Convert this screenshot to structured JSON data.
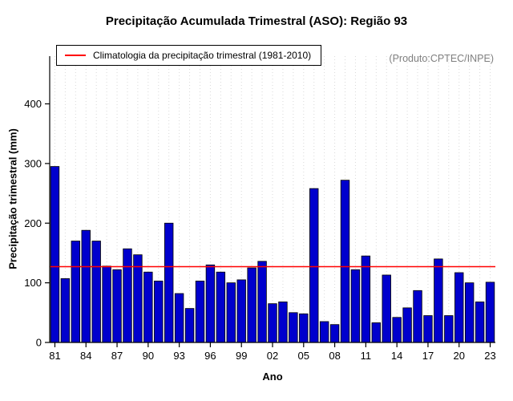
{
  "chart_data": {
    "type": "bar",
    "title": "Precipitação Acumulada Trimestral (ASO): Região 93",
    "xlabel": "Ano",
    "ylabel": "Precipitação trimestral (mm)",
    "legend_label": "Climatologia da precipitação trimestral (1981-2010)",
    "annotation": "(Produto:CPTEC/INPE)",
    "climatology_value": 127,
    "ylim": [
      0,
      480
    ],
    "yticks": [
      0,
      100,
      200,
      300,
      400
    ],
    "xtick_labels": [
      "81",
      "84",
      "87",
      "90",
      "93",
      "96",
      "99",
      "02",
      "05",
      "08",
      "11",
      "14",
      "17",
      "20",
      "23"
    ],
    "years": [
      "81",
      "82",
      "83",
      "84",
      "85",
      "86",
      "87",
      "88",
      "89",
      "90",
      "91",
      "92",
      "93",
      "94",
      "95",
      "96",
      "97",
      "98",
      "99",
      "00",
      "01",
      "02",
      "03",
      "04",
      "05",
      "06",
      "07",
      "08",
      "09",
      "10",
      "11",
      "12",
      "13",
      "14",
      "15",
      "16",
      "17",
      "18",
      "19",
      "20",
      "21",
      "22",
      "23"
    ],
    "values": [
      295,
      107,
      170,
      188,
      170,
      128,
      122,
      157,
      147,
      118,
      103,
      200,
      82,
      57,
      103,
      130,
      118,
      100,
      105,
      125,
      136,
      65,
      68,
      50,
      48,
      258,
      35,
      30,
      272,
      122,
      145,
      33,
      113,
      42,
      58,
      87,
      45,
      140,
      45,
      117,
      100,
      68,
      101
    ],
    "bar_color": "#0000CD",
    "bar_border_color": "#000000",
    "line_color": "#FF0000",
    "grid_color": "#D9D9D9",
    "annotation_color": "#7F7F7F",
    "legend_position": "top-left",
    "grid": "vertical-dotted"
  }
}
